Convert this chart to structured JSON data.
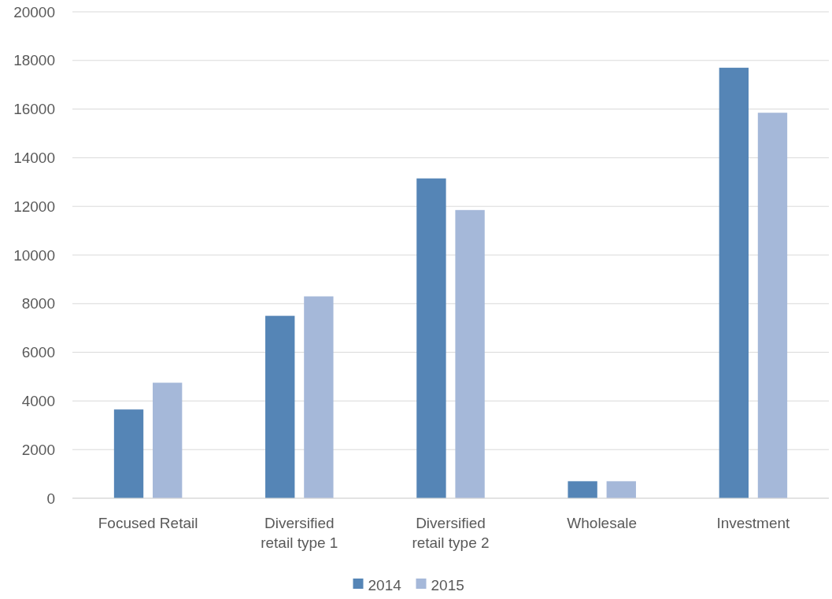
{
  "chart_data": {
    "type": "bar",
    "categories": [
      "Focused Retail",
      "Diversified retail type 1",
      "Diversified retail type 2",
      "Wholesale",
      "Investment"
    ],
    "series": [
      {
        "name": "2014",
        "color": "#5585b6",
        "values": [
          3650,
          7500,
          13150,
          700,
          17700
        ]
      },
      {
        "name": "2015",
        "color": "#a5b8d9",
        "values": [
          4750,
          8300,
          11850,
          700,
          15850
        ]
      }
    ],
    "ylim": [
      0,
      20000
    ],
    "yticks": [
      0,
      2000,
      4000,
      6000,
      8000,
      10000,
      12000,
      14000,
      16000,
      18000,
      20000
    ],
    "grid": "y",
    "legend": "bottom"
  }
}
